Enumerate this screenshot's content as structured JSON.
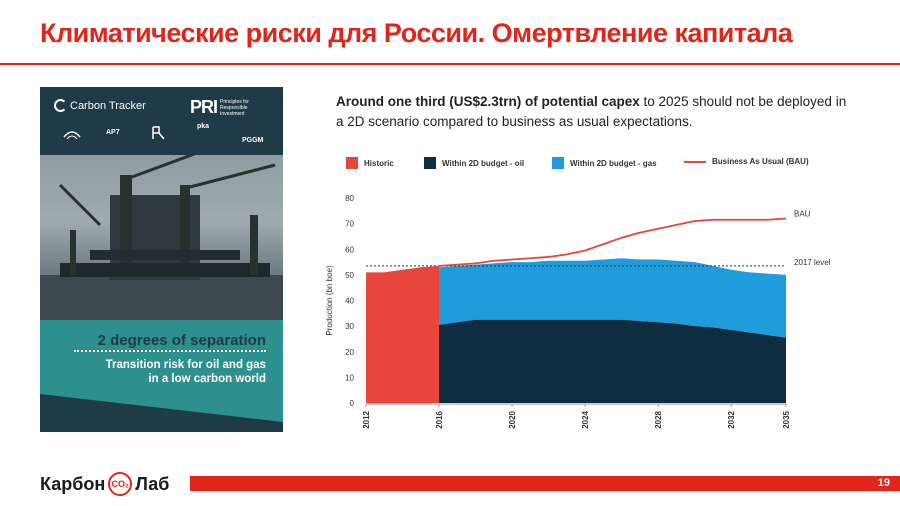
{
  "slide": {
    "title": "Климатические риски для России. Омертвление капитала",
    "page_number": "19"
  },
  "cover": {
    "logo_carbon_tracker": "Carbon Tracker",
    "logo_pri": "PRI",
    "logo_pri_text": "Principles for Responsible Investment",
    "logo_ap7": "AP7",
    "logo_pka": "pka",
    "logo_pggm": "PGGM",
    "title": "2 degrees of separation",
    "subtitle_line1": "Transition risk for oil and gas",
    "subtitle_line2": "in a low carbon world"
  },
  "caption": {
    "bold": "Around one third (US$2.3trn) of potential capex",
    "rest": " to 2025 should not be deployed in a 2D scenario compared to business as usual expectations."
  },
  "footer": {
    "brand_left": "Карбон",
    "brand_co2": "CO₂",
    "brand_right": "Лаб"
  },
  "chart_data": {
    "type": "area",
    "ylabel": "Production (bn boe)",
    "xlabel": "",
    "ylim": [
      0,
      80
    ],
    "yticks": [
      0,
      10,
      20,
      30,
      40,
      50,
      60,
      70,
      80
    ],
    "xticks": [
      "2012",
      "2016",
      "2020",
      "2024",
      "2028",
      "2032",
      "2035"
    ],
    "x": [
      2012,
      2013,
      2014,
      2015,
      2016,
      2017,
      2018,
      2019,
      2020,
      2021,
      2022,
      2023,
      2024,
      2025,
      2026,
      2027,
      2028,
      2029,
      2030,
      2031,
      2032,
      2033,
      2034,
      2035
    ],
    "legend_position": "top",
    "colors": {
      "historic": "#e8453c",
      "oil": "#0e2d40",
      "gas": "#1e9cdc",
      "bau": "#e8453c",
      "level": "#333333"
    },
    "legend": {
      "historic": "Historic",
      "oil": "Within 2D budget - oil",
      "gas": "Within 2D budget - gas",
      "bau": "Business As Usual (BAU)"
    },
    "series": [
      {
        "name": "Historic",
        "x": [
          2012,
          2013,
          2014,
          2015,
          2016
        ],
        "values": [
          51,
          51,
          52,
          53,
          53.5
        ]
      },
      {
        "name": "Within 2D budget - oil",
        "x": [
          2016,
          2017,
          2018,
          2019,
          2020,
          2021,
          2022,
          2023,
          2024,
          2025,
          2026,
          2027,
          2028,
          2029,
          2030,
          2031,
          2032,
          2033,
          2034,
          2035
        ],
        "values": [
          30.5,
          31.5,
          32.5,
          32.5,
          32.5,
          32.5,
          32.5,
          32.5,
          32.5,
          32.5,
          32.5,
          32,
          31.5,
          31,
          30,
          29.5,
          28.5,
          27.5,
          26.5,
          25.5
        ]
      },
      {
        "name": "Within 2D budget - gas",
        "x": [
          2016,
          2017,
          2018,
          2019,
          2020,
          2021,
          2022,
          2023,
          2024,
          2025,
          2026,
          2027,
          2028,
          2029,
          2030,
          2031,
          2032,
          2033,
          2034,
          2035
        ],
        "values": [
          22.5,
          22,
          21.5,
          22,
          22.5,
          22.5,
          23,
          23,
          23,
          23.5,
          24,
          24,
          24.5,
          24.5,
          25,
          24,
          23.5,
          23.5,
          24,
          24.5
        ]
      },
      {
        "name": "Business As Usual (BAU)",
        "x": [
          2016,
          2017,
          2018,
          2019,
          2020,
          2021,
          2022,
          2023,
          2024,
          2025,
          2026,
          2027,
          2028,
          2029,
          2030,
          2031,
          2032,
          2033,
          2034,
          2035
        ],
        "values": [
          53.5,
          54,
          54.5,
          55.5,
          56,
          56.5,
          57,
          58,
          59.5,
          62,
          64.5,
          66.5,
          68,
          69.5,
          71,
          71.5,
          71.5,
          71.5,
          71.5,
          72
        ]
      }
    ],
    "reference_line": {
      "label": "2017 level",
      "value": 53.5
    },
    "annotations": {
      "bau_label": "BAU"
    }
  }
}
